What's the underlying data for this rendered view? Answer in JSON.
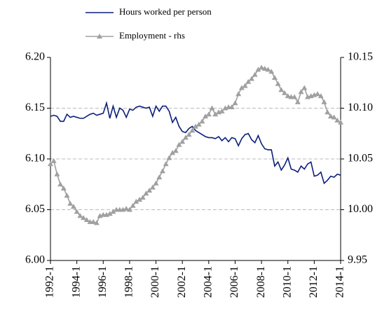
{
  "chart_data": {
    "type": "line",
    "categories": [
      "1992-1",
      null,
      null,
      null,
      null,
      null,
      null,
      null,
      "1994-1",
      null,
      null,
      null,
      null,
      null,
      null,
      null,
      "1996-1",
      null,
      null,
      null,
      null,
      null,
      null,
      null,
      "1998-1",
      null,
      null,
      null,
      null,
      null,
      null,
      null,
      "2000-1",
      null,
      null,
      null,
      null,
      null,
      null,
      null,
      "2002-1",
      null,
      null,
      null,
      null,
      null,
      null,
      null,
      "2004-1",
      null,
      null,
      null,
      null,
      null,
      null,
      null,
      "2006-1",
      null,
      null,
      null,
      null,
      null,
      null,
      null,
      "2008-1",
      null,
      null,
      null,
      null,
      null,
      null,
      null,
      "2010-1",
      null,
      null,
      null,
      null,
      null,
      null,
      null,
      "2012-1",
      null,
      null,
      null,
      null,
      null,
      null,
      null,
      "2014-1"
    ],
    "series": [
      {
        "name": "Hours worked per person",
        "color": "#0b1f7a",
        "values": [
          6.142,
          6.143,
          6.142,
          6.137,
          6.137,
          6.144,
          6.141,
          6.142,
          6.141,
          6.14,
          6.14,
          6.142,
          6.144,
          6.145,
          6.143,
          6.144,
          6.145,
          6.155,
          6.14,
          6.152,
          6.141,
          6.15,
          6.148,
          6.141,
          6.149,
          6.148,
          6.151,
          6.152,
          6.151,
          6.15,
          6.151,
          6.142,
          6.152,
          6.147,
          6.152,
          6.152,
          6.147,
          6.136,
          6.141,
          6.132,
          6.127,
          6.126,
          6.13,
          6.132,
          6.128,
          6.126,
          6.124,
          6.122,
          6.121,
          6.121,
          6.12,
          6.122,
          6.118,
          6.121,
          6.117,
          6.121,
          6.12,
          6.113,
          6.12,
          6.124,
          6.125,
          6.119,
          6.116,
          6.123,
          6.115,
          6.11,
          6.109,
          6.109,
          6.093,
          6.097,
          6.089,
          6.094,
          6.101,
          6.09,
          6.089,
          6.087,
          6.093,
          6.09,
          6.095,
          6.097,
          6.083,
          6.084,
          6.087,
          6.076,
          6.079,
          6.083,
          6.082,
          6.085,
          6.084
        ]
      },
      {
        "name": "Employment - rhs",
        "color": "#a0a0a0",
        "axis": "y2",
        "marker": "triangle",
        "values": [
          10.045,
          10.048,
          10.035,
          10.025,
          10.021,
          10.014,
          10.006,
          10.003,
          9.998,
          9.994,
          9.992,
          9.99,
          9.988,
          9.988,
          9.987,
          9.994,
          9.995,
          9.995,
          9.996,
          9.998,
          10.0,
          10.0,
          10.0,
          10.001,
          10.0,
          10.004,
          10.008,
          10.01,
          10.012,
          10.016,
          10.019,
          10.022,
          10.026,
          10.032,
          10.038,
          10.045,
          10.051,
          10.056,
          10.058,
          10.064,
          10.067,
          10.071,
          10.074,
          10.078,
          10.082,
          10.084,
          10.087,
          10.092,
          10.094,
          10.1,
          10.094,
          10.096,
          10.097,
          10.1,
          10.101,
          10.101,
          10.105,
          10.114,
          10.12,
          10.122,
          10.126,
          10.129,
          10.133,
          10.138,
          10.14,
          10.139,
          10.138,
          10.136,
          10.13,
          10.124,
          10.118,
          10.115,
          10.112,
          10.111,
          10.111,
          10.106,
          10.116,
          10.12,
          10.111,
          10.112,
          10.113,
          10.114,
          10.112,
          10.106,
          10.096,
          10.092,
          10.091,
          10.088,
          10.086
        ]
      }
    ],
    "ylim": [
      6.0,
      6.2
    ],
    "yticks": [
      {
        "value": 6.0,
        "label": "6.00"
      },
      6.05,
      {
        "value": 6.1,
        "label": "6.10"
      },
      6.15,
      {
        "value": 6.2,
        "label": "6.20"
      }
    ],
    "y2lim": [
      9.95,
      10.15
    ],
    "y2ticks": [
      9.95,
      {
        "value": 10.0,
        "label": "10.00"
      },
      10.05,
      {
        "value": 10.1,
        "label": "10.10"
      },
      10.15
    ],
    "grid": true,
    "legend": "top"
  }
}
